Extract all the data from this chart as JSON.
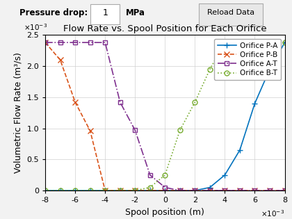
{
  "title": "Flow Rate vs. Spool Position for Each Orifice",
  "xlabel": "Spool position (m)",
  "ylabel": "Volumetric Flow Rate (m³/s)",
  "xlim": [
    -0.008,
    0.008
  ],
  "ylim": [
    0,
    0.0025
  ],
  "pressure_label": "Pressure drop:",
  "pressure_value": "1",
  "pressure_unit": "MPa",
  "reload_label": "Reload Data",
  "bg_color": "#f0f0f0",
  "orifices": {
    "PA": {
      "label": "Orifice P-A",
      "color": "#0072BD",
      "linestyle": "-",
      "marker": "+",
      "markersize": 6,
      "x": [
        -0.008,
        -0.007,
        -0.006,
        -0.005,
        -0.004,
        -0.003,
        -0.002,
        -0.001,
        0,
        0.001,
        0.002,
        0.003,
        0.004,
        0.005,
        0.006,
        0.007,
        0.008
      ],
      "y": [
        0,
        0,
        0,
        0,
        0,
        0,
        0,
        0,
        0,
        0,
        0,
        5e-05,
        0.00025,
        0.00065,
        0.0014,
        0.00195,
        0.00238
      ]
    },
    "PB": {
      "label": "Orifice P-B",
      "color": "#D95319",
      "linestyle": "--",
      "marker": "x",
      "markersize": 6,
      "x": [
        -0.008,
        -0.007,
        -0.006,
        -0.005,
        -0.004,
        -0.003,
        -0.002,
        -0.001,
        0,
        0.001,
        0.002,
        0.003,
        0.004,
        0.005,
        0.006,
        0.007,
        0.008
      ],
      "y": [
        0.00238,
        0.0021,
        0.00142,
        0.00096,
        0.0,
        0.0,
        0.0,
        0.0,
        0.0,
        0.0,
        0.0,
        0.0,
        0.0,
        0.0,
        0.0,
        0.0,
        0.0
      ]
    },
    "AT": {
      "label": "Orifice A-T",
      "color": "#7E2F8E",
      "linestyle": "-.",
      "marker": "s",
      "markersize": 5,
      "x": [
        -0.008,
        -0.007,
        -0.006,
        -0.005,
        -0.004,
        -0.003,
        -0.002,
        -0.001,
        0,
        0.001,
        0.002,
        0.003,
        0.004,
        0.005,
        0.006,
        0.007,
        0.008
      ],
      "y": [
        0.00238,
        0.00238,
        0.00238,
        0.00238,
        0.00238,
        0.00142,
        0.00097,
        0.00025,
        5e-05,
        0.0,
        0.0,
        0.0,
        0.0,
        0.0,
        0.0,
        0.0,
        0.0
      ]
    },
    "BT": {
      "label": "Orifice B-T",
      "color": "#77AC30",
      "linestyle": ":",
      "marker": "o",
      "markersize": 5,
      "x": [
        -0.008,
        -0.007,
        -0.006,
        -0.005,
        -0.004,
        -0.003,
        -0.002,
        -0.001,
        0,
        0.001,
        0.002,
        0.003,
        0.004,
        0.005,
        0.006,
        0.007,
        0.008
      ],
      "y": [
        0,
        0,
        0,
        0,
        0,
        0,
        0,
        5e-05,
        0.00025,
        0.00097,
        0.00142,
        0.00195,
        0.00238,
        0.00238,
        0.00238,
        0.00238,
        0.00238
      ]
    }
  }
}
